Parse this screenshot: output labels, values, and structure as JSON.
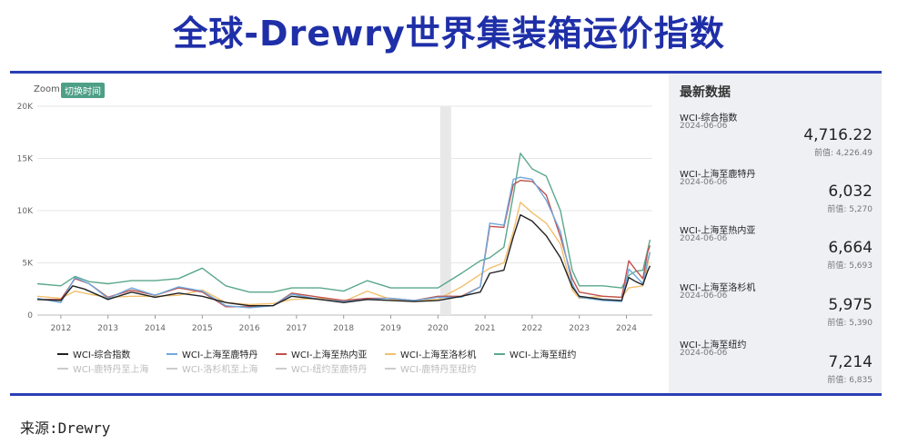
{
  "title": "全球-Drewry世界集装箱运价指数",
  "source": "来源:Drewry",
  "zoom": {
    "label": "Zoom",
    "button": "切换时间"
  },
  "sidebar": {
    "title": "最新数据",
    "cards": [
      {
        "name": "WCI-综合指数",
        "date": "2024-06-06",
        "value": "4,716.22",
        "prev": "前值: 4,226.49"
      },
      {
        "name": "WCI-上海至鹿特丹",
        "date": "2024-06-06",
        "value": "6,032",
        "prev": "前值: 5,270"
      },
      {
        "name": "WCI-上海至热内亚",
        "date": "2024-06-06",
        "value": "6,664",
        "prev": "前值: 5,693"
      },
      {
        "name": "WCI-上海至洛杉机",
        "date": "2024-06-06",
        "value": "5,975",
        "prev": "前值: 5,390"
      },
      {
        "name": "WCI-上海至纽约",
        "date": "2024-06-06",
        "value": "7,214",
        "prev": "前值: 6,835"
      }
    ]
  },
  "chart_data": {
    "type": "line",
    "y_ticks": [
      "0",
      "5K",
      "10K",
      "15K",
      "20K"
    ],
    "ylim": [
      0,
      20000
    ],
    "x_ticks": [
      "2012",
      "2013",
      "2014",
      "2015",
      "2016",
      "2017",
      "2018",
      "2019",
      "2020",
      "2021",
      "2022",
      "2023",
      "2024"
    ],
    "xlim": [
      2011.5,
      2024.55
    ],
    "grid": true,
    "legend_position": "bottom",
    "series": [
      {
        "name": "WCI-综合指数",
        "color": "#222222",
        "visible": true,
        "points": [
          [
            2011.5,
            1500
          ],
          [
            2012.0,
            1400
          ],
          [
            2012.25,
            2800
          ],
          [
            2012.5,
            2500
          ],
          [
            2013.0,
            1500
          ],
          [
            2013.5,
            2200
          ],
          [
            2014.0,
            1700
          ],
          [
            2014.5,
            2100
          ],
          [
            2015.0,
            1800
          ],
          [
            2015.5,
            1200
          ],
          [
            2016.0,
            900
          ],
          [
            2016.5,
            900
          ],
          [
            2016.9,
            1800
          ],
          [
            2017.5,
            1500
          ],
          [
            2018.0,
            1200
          ],
          [
            2018.5,
            1500
          ],
          [
            2019.0,
            1400
          ],
          [
            2019.5,
            1300
          ],
          [
            2020.0,
            1400
          ],
          [
            2020.5,
            1800
          ],
          [
            2020.9,
            2200
          ],
          [
            2021.1,
            4000
          ],
          [
            2021.4,
            4300
          ],
          [
            2021.6,
            7500
          ],
          [
            2021.75,
            9600
          ],
          [
            2022.0,
            9000
          ],
          [
            2022.3,
            7600
          ],
          [
            2022.6,
            5500
          ],
          [
            2022.85,
            2700
          ],
          [
            2023.0,
            1800
          ],
          [
            2023.5,
            1500
          ],
          [
            2023.9,
            1400
          ],
          [
            2024.05,
            3600
          ],
          [
            2024.2,
            3200
          ],
          [
            2024.35,
            2900
          ],
          [
            2024.45,
            4200
          ],
          [
            2024.5,
            4716
          ]
        ]
      },
      {
        "name": "WCI-上海至鹿特丹",
        "color": "#6fa8dc",
        "visible": true,
        "points": [
          [
            2011.5,
            1600
          ],
          [
            2012.0,
            1200
          ],
          [
            2012.3,
            3600
          ],
          [
            2012.6,
            3000
          ],
          [
            2013.0,
            1600
          ],
          [
            2013.5,
            2600
          ],
          [
            2014.0,
            1900
          ],
          [
            2014.5,
            2700
          ],
          [
            2015.0,
            2300
          ],
          [
            2015.5,
            900
          ],
          [
            2016.0,
            700
          ],
          [
            2016.5,
            900
          ],
          [
            2016.9,
            2000
          ],
          [
            2017.5,
            1500
          ],
          [
            2018.0,
            1300
          ],
          [
            2018.5,
            1500
          ],
          [
            2019.0,
            1600
          ],
          [
            2019.5,
            1400
          ],
          [
            2020.0,
            1700
          ],
          [
            2020.5,
            1700
          ],
          [
            2020.9,
            2700
          ],
          [
            2021.1,
            8800
          ],
          [
            2021.4,
            8600
          ],
          [
            2021.6,
            13000
          ],
          [
            2021.75,
            13200
          ],
          [
            2022.0,
            13000
          ],
          [
            2022.3,
            11000
          ],
          [
            2022.6,
            8000
          ],
          [
            2022.85,
            3000
          ],
          [
            2023.0,
            1700
          ],
          [
            2023.5,
            1400
          ],
          [
            2023.9,
            1300
          ],
          [
            2024.05,
            4400
          ],
          [
            2024.2,
            3700
          ],
          [
            2024.35,
            3000
          ],
          [
            2024.45,
            5200
          ],
          [
            2024.5,
            6032
          ]
        ]
      },
      {
        "name": "WCI-上海至热内亚",
        "color": "#c0504d",
        "visible": true,
        "points": [
          [
            2011.5,
            1500
          ],
          [
            2012.0,
            1500
          ],
          [
            2012.3,
            3500
          ],
          [
            2012.6,
            3000
          ],
          [
            2013.0,
            1700
          ],
          [
            2013.5,
            2400
          ],
          [
            2014.0,
            1900
          ],
          [
            2014.5,
            2600
          ],
          [
            2015.0,
            2200
          ],
          [
            2015.5,
            800
          ],
          [
            2016.0,
            800
          ],
          [
            2016.5,
            900
          ],
          [
            2016.9,
            2100
          ],
          [
            2017.5,
            1700
          ],
          [
            2018.0,
            1400
          ],
          [
            2018.5,
            1600
          ],
          [
            2019.0,
            1600
          ],
          [
            2019.5,
            1400
          ],
          [
            2020.0,
            1800
          ],
          [
            2020.5,
            1800
          ],
          [
            2020.9,
            2700
          ],
          [
            2021.1,
            8500
          ],
          [
            2021.4,
            8400
          ],
          [
            2021.6,
            12500
          ],
          [
            2021.75,
            12900
          ],
          [
            2022.0,
            12800
          ],
          [
            2022.3,
            11500
          ],
          [
            2022.6,
            7500
          ],
          [
            2022.85,
            3500
          ],
          [
            2023.0,
            2200
          ],
          [
            2023.5,
            1800
          ],
          [
            2023.9,
            1700
          ],
          [
            2024.05,
            5200
          ],
          [
            2024.2,
            4300
          ],
          [
            2024.35,
            3500
          ],
          [
            2024.45,
            6000
          ],
          [
            2024.5,
            6664
          ]
        ]
      },
      {
        "name": "WCI-上海至洛杉机",
        "color": "#f2c06e",
        "visible": true,
        "points": [
          [
            2011.5,
            1800
          ],
          [
            2012.0,
            1600
          ],
          [
            2012.3,
            2300
          ],
          [
            2012.6,
            2000
          ],
          [
            2013.0,
            1700
          ],
          [
            2013.5,
            1800
          ],
          [
            2014.0,
            1800
          ],
          [
            2014.5,
            1900
          ],
          [
            2015.0,
            2400
          ],
          [
            2015.5,
            1200
          ],
          [
            2016.0,
            1000
          ],
          [
            2016.5,
            1100
          ],
          [
            2016.9,
            1500
          ],
          [
            2017.5,
            1600
          ],
          [
            2018.0,
            1300
          ],
          [
            2018.5,
            2300
          ],
          [
            2019.0,
            1500
          ],
          [
            2019.5,
            1400
          ],
          [
            2020.0,
            1500
          ],
          [
            2020.5,
            2700
          ],
          [
            2020.9,
            3900
          ],
          [
            2021.1,
            4500
          ],
          [
            2021.4,
            5000
          ],
          [
            2021.6,
            8000
          ],
          [
            2021.75,
            10800
          ],
          [
            2022.0,
            9800
          ],
          [
            2022.3,
            8800
          ],
          [
            2022.6,
            6800
          ],
          [
            2022.85,
            2400
          ],
          [
            2023.0,
            1600
          ],
          [
            2023.5,
            1800
          ],
          [
            2023.9,
            1700
          ],
          [
            2024.05,
            2600
          ],
          [
            2024.2,
            2700
          ],
          [
            2024.35,
            2800
          ],
          [
            2024.45,
            4800
          ],
          [
            2024.5,
            5975
          ]
        ]
      },
      {
        "name": "WCI-上海至纽约",
        "color": "#5aa88a",
        "visible": true,
        "points": [
          [
            2011.5,
            3000
          ],
          [
            2012.0,
            2800
          ],
          [
            2012.3,
            3700
          ],
          [
            2012.6,
            3200
          ],
          [
            2013.0,
            3000
          ],
          [
            2013.5,
            3300
          ],
          [
            2014.0,
            3300
          ],
          [
            2014.5,
            3500
          ],
          [
            2015.0,
            4500
          ],
          [
            2015.5,
            2800
          ],
          [
            2016.0,
            2200
          ],
          [
            2016.5,
            2200
          ],
          [
            2016.9,
            2600
          ],
          [
            2017.5,
            2600
          ],
          [
            2018.0,
            2300
          ],
          [
            2018.5,
            3300
          ],
          [
            2019.0,
            2600
          ],
          [
            2019.5,
            2600
          ],
          [
            2020.0,
            2600
          ],
          [
            2020.5,
            4000
          ],
          [
            2020.9,
            5200
          ],
          [
            2021.1,
            5500
          ],
          [
            2021.4,
            6500
          ],
          [
            2021.6,
            11500
          ],
          [
            2021.75,
            15500
          ],
          [
            2022.0,
            14000
          ],
          [
            2022.3,
            13300
          ],
          [
            2022.6,
            10000
          ],
          [
            2022.85,
            4300
          ],
          [
            2023.0,
            2800
          ],
          [
            2023.5,
            2800
          ],
          [
            2023.9,
            2600
          ],
          [
            2024.05,
            3800
          ],
          [
            2024.2,
            4200
          ],
          [
            2024.35,
            4300
          ],
          [
            2024.45,
            6200
          ],
          [
            2024.5,
            7214
          ]
        ]
      },
      {
        "name": "WCI-鹿特丹至上海",
        "color": "#cccccc",
        "visible": false,
        "points": []
      },
      {
        "name": "WCI-洛杉机至上海",
        "color": "#cccccc",
        "visible": false,
        "points": []
      },
      {
        "name": "WCI-纽约至鹿特丹",
        "color": "#cccccc",
        "visible": false,
        "points": []
      },
      {
        "name": "WCI-鹿特丹至纽约",
        "color": "#cccccc",
        "visible": false,
        "points": []
      }
    ]
  }
}
